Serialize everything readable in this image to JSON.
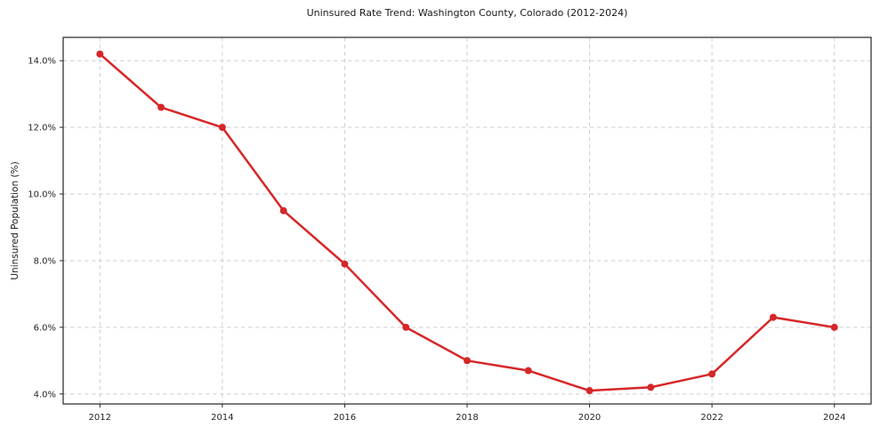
{
  "chart_data": {
    "type": "line",
    "title": "Uninsured Rate Trend: Washington County, Colorado (2012-2024)",
    "xlabel": "",
    "ylabel": "Uninsured Population (%)",
    "series": [
      {
        "name": "Uninsured rate",
        "x": [
          2012,
          2013,
          2014,
          2015,
          2016,
          2017,
          2018,
          2019,
          2020,
          2021,
          2022,
          2023,
          2024
        ],
        "values": [
          14.2,
          12.6,
          12.0,
          9.5,
          7.9,
          6.0,
          5.0,
          4.7,
          4.1,
          4.2,
          4.6,
          6.3,
          6.0
        ]
      }
    ],
    "xlim": [
      2011.4,
      2024.6
    ],
    "ylim": [
      3.7,
      14.7
    ],
    "xticks": [
      2012,
      2014,
      2016,
      2018,
      2020,
      2022,
      2024
    ],
    "xtick_labels": [
      "2012",
      "2014",
      "2016",
      "2018",
      "2020",
      "2022",
      "2024"
    ],
    "yticks": [
      4,
      6,
      8,
      10,
      12,
      14
    ],
    "ytick_labels": [
      "4.0%",
      "6.0%",
      "8.0%",
      "10.0%",
      "12.0%",
      "14.0%"
    ],
    "grid": true,
    "grid_style": "dashed",
    "legend": "none",
    "marker": "circle",
    "colors": {
      "line": "#d62728",
      "marker": "#d62728",
      "grid": "#cfcfcf",
      "spine": "#262626",
      "tick_text": "#262626",
      "background": "#ffffff"
    }
  }
}
